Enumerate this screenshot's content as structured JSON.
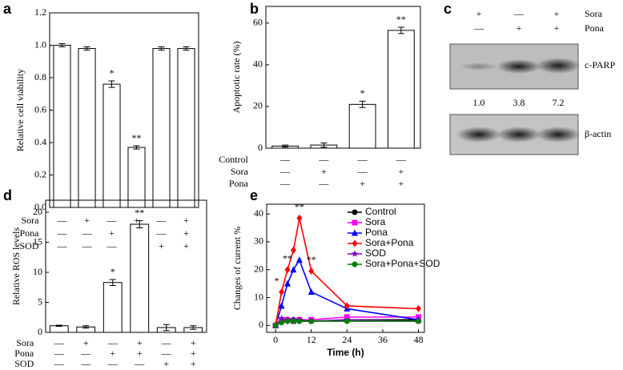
{
  "chart_data": [
    {
      "type": "bar",
      "panel_label": "a",
      "ylabel": "Relative cell viability",
      "values": [
        1.0,
        0.98,
        0.76,
        0.37,
        0.98,
        0.98
      ],
      "errors": [
        0.01,
        0.01,
        0.02,
        0.01,
        0.01,
        0.01
      ],
      "value_annotations": [
        null,
        null,
        "*",
        "**",
        null,
        null
      ],
      "ylim": [
        0,
        1.2
      ],
      "yticks": [
        {
          "value": 0,
          "label": "0.0"
        },
        {
          "value": 0.2,
          "label": "0.2"
        },
        {
          "value": 0.4,
          "label": "0.4"
        },
        {
          "value": 0.6,
          "label": "0.6"
        },
        {
          "value": 0.8,
          "label": "0.8"
        },
        {
          "value": 1.0,
          "label": "1.0"
        },
        {
          "value": 1.2,
          "label": "1.2"
        }
      ],
      "conditions": [
        {
          "name": "Sora",
          "marks": [
            "—",
            "+",
            "—",
            "+",
            "—",
            "+"
          ]
        },
        {
          "name": "Pona",
          "marks": [
            "—",
            "—",
            "+",
            "+",
            "—",
            "+"
          ]
        },
        {
          "name": "SOD",
          "marks": [
            "—",
            "—",
            "—",
            "—",
            "+",
            "+"
          ]
        }
      ]
    },
    {
      "type": "bar",
      "panel_label": "b",
      "ylabel": "Apoptotic rate (%)",
      "values": [
        1,
        1.5,
        21,
        56.5
      ],
      "errors": [
        0.5,
        1,
        1.5,
        1.5
      ],
      "value_annotations": [
        null,
        null,
        "*",
        "**"
      ],
      "ylim": [
        0,
        68
      ],
      "yticks": [
        0,
        20,
        40,
        60
      ],
      "conditions": [
        {
          "name": "Control",
          "marks": [
            "—",
            "—",
            "—",
            "—"
          ]
        },
        {
          "name": "Sora",
          "marks": [
            "—",
            "+",
            "—",
            "+"
          ]
        },
        {
          "name": "Pona",
          "marks": [
            "—",
            "—",
            "+",
            "+"
          ]
        }
      ]
    },
    {
      "type": "bar",
      "panel_label": "d",
      "ylabel": "Relative ROS levels",
      "values": [
        1.1,
        0.9,
        8.3,
        18,
        0.8,
        0.8
      ],
      "errors": [
        0.1,
        0.2,
        0.5,
        0.6,
        0.5,
        0.3
      ],
      "value_annotations": [
        null,
        null,
        "*",
        "**",
        null,
        null
      ],
      "ylim": [
        0,
        22
      ],
      "yticks": [
        0,
        5,
        10,
        15,
        20
      ],
      "conditions": [
        {
          "name": "Sora",
          "marks": [
            "—",
            "+",
            "—",
            "+",
            "—",
            "+"
          ]
        },
        {
          "name": "Pona",
          "marks": [
            "—",
            "—",
            "+",
            "+",
            "—",
            "+"
          ]
        },
        {
          "name": "SOD",
          "marks": [
            "—",
            "—",
            "—",
            "—",
            "+",
            "+"
          ]
        }
      ]
    },
    {
      "type": "line",
      "panel_label": "e",
      "xlabel": "Time (h)",
      "ylabel": "Changes of current %",
      "x": [
        0,
        2,
        4,
        6,
        8,
        12,
        24,
        48
      ],
      "xlim": [
        -3,
        50
      ],
      "xticks": [
        0,
        12,
        24,
        36,
        48
      ],
      "ylim": [
        -2.5,
        43.5
      ],
      "yticks": [
        0,
        10,
        20,
        30,
        40
      ],
      "legend": "upper right",
      "series": [
        {
          "name": "Control",
          "color": "#000000",
          "marker": "circle",
          "values": [
            0,
            1.5,
            2,
            2,
            1.5,
            1.5,
            2,
            2
          ]
        },
        {
          "name": "Sora",
          "color": "#ff00ff",
          "marker": "square",
          "values": [
            0,
            2,
            2,
            1.5,
            2,
            2,
            3,
            3
          ]
        },
        {
          "name": "Pona",
          "color": "#0000ff",
          "marker": "triangle",
          "values": [
            0,
            7,
            15,
            20,
            23.5,
            12,
            6,
            2
          ]
        },
        {
          "name": "Sora+Pona",
          "color": "#ff0000",
          "marker": "diamond",
          "values": [
            0,
            12,
            20,
            27,
            38.5,
            19.5,
            7,
            6
          ],
          "annotations": [
            null,
            "*",
            "**",
            null,
            "**",
            "**",
            null,
            null
          ]
        },
        {
          "name": "SOD",
          "color": "#8000c0",
          "marker": "star",
          "values": [
            0,
            2.5,
            2,
            2,
            2,
            1.5,
            2,
            1.5
          ]
        },
        {
          "name": "Sora+Pona+SOD",
          "color": "#008000",
          "marker": "circle",
          "values": [
            0,
            1,
            1.5,
            1.5,
            1.5,
            1.5,
            1.5,
            1.5
          ]
        }
      ]
    }
  ],
  "blot": {
    "panel_label": "c",
    "treatments": [
      {
        "name": "Sora",
        "marks": [
          "+",
          "—",
          "+"
        ]
      },
      {
        "name": "Pona",
        "marks": [
          "—",
          "+",
          "+"
        ]
      }
    ],
    "bands": [
      "c-PARP",
      "β-actin"
    ],
    "quantification": [
      "1.0",
      "3.8",
      "7.2"
    ]
  }
}
